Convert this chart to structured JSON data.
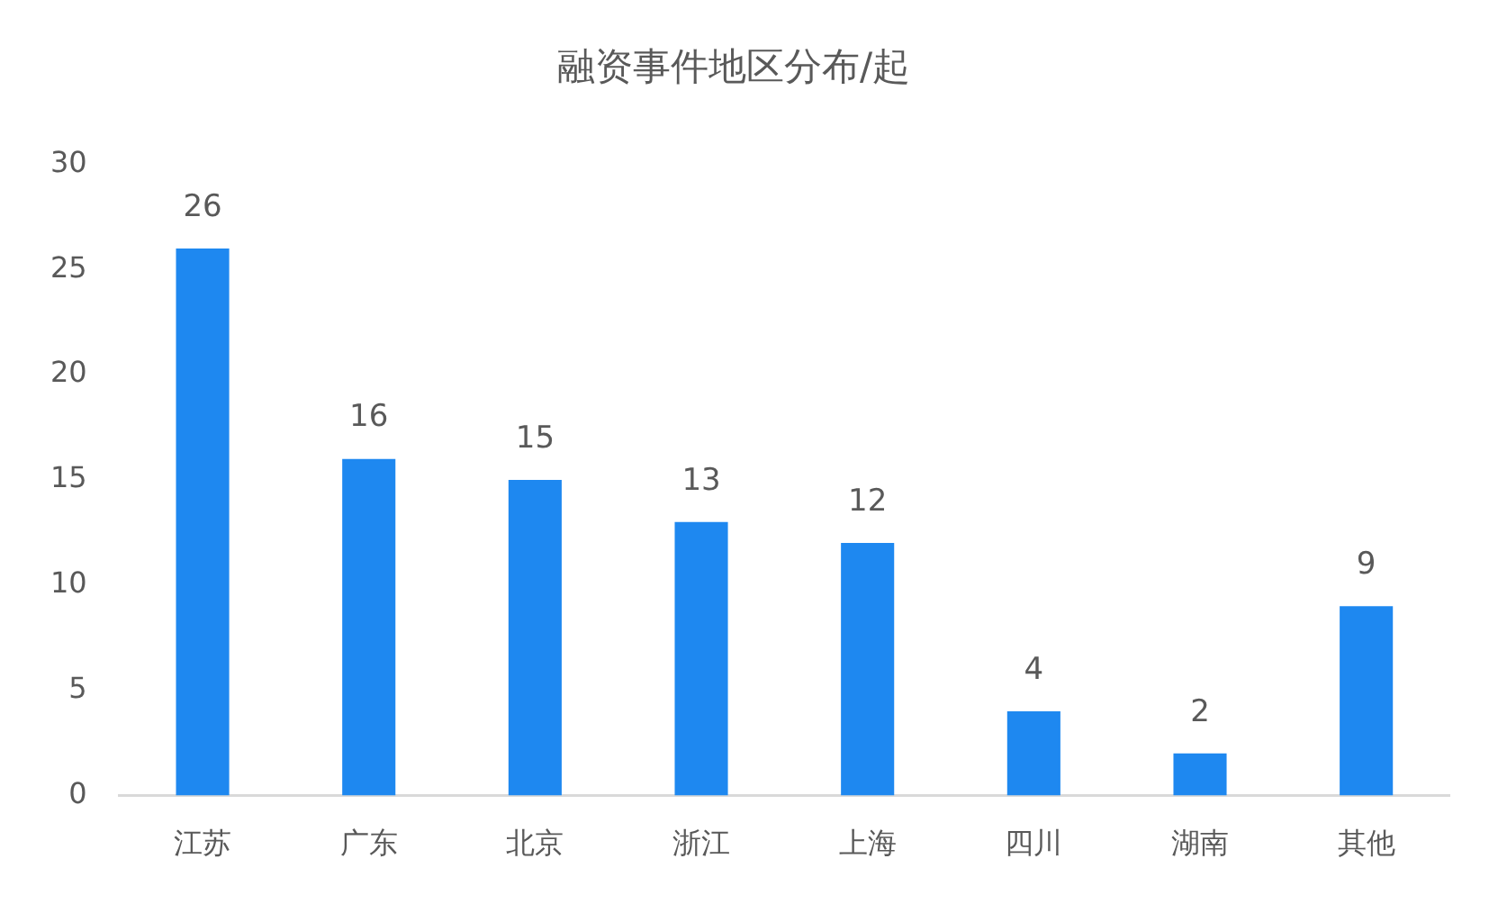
{
  "chart_data": {
    "type": "bar",
    "title": "融资事件地区分布/起",
    "categories": [
      "江苏",
      "广东",
      "北京",
      "浙江",
      "上海",
      "四川",
      "湖南",
      "其他"
    ],
    "values": [
      26,
      16,
      15,
      13,
      12,
      4,
      2,
      9
    ],
    "color": "#1e88f0",
    "ylim": [
      0,
      30
    ],
    "yticks": [
      0,
      5,
      10,
      15,
      20,
      25,
      30
    ],
    "grid": false,
    "data_labels": true,
    "legend": false
  }
}
